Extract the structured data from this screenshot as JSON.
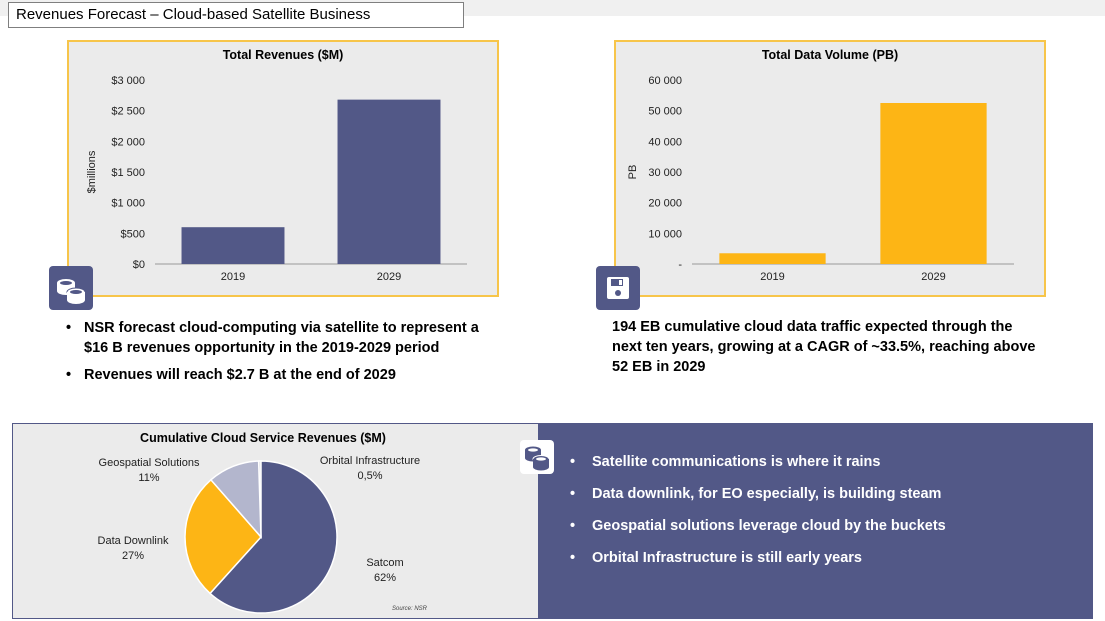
{
  "slide_title": "Revenues Forecast – Cloud-based Satellite Business",
  "colors": {
    "navy": "#525887",
    "orange": "#fdb515",
    "panel_border": "#f7c54a",
    "panel_bg": "#ebebeb"
  },
  "icons": {
    "revenue_icon": "coins-icon",
    "data_icon": "floppy-disk-icon",
    "pie_icon": "coins-icon"
  },
  "left_bullets": [
    "NSR forecast cloud-computing via satellite to represent a $16 B revenues opportunity in the 2019-2029 period",
    "Revenues will reach $2.7 B at the end of 2029"
  ],
  "right_text": "194 EB cumulative cloud data traffic expected through the next ten years, growing at a CAGR of ~33.5%, reaching above 52 EB in 2029",
  "bottom_bullets": [
    "Satellite communications is where it rains",
    "Data downlink, for EO especially, is building steam",
    "Geospatial solutions leverage cloud by the buckets",
    "Orbital Infrastructure is still early years"
  ],
  "pie_source": "Source: NSR",
  "chart_data": [
    {
      "type": "bar",
      "title": "Total Revenues ($M)",
      "ylabel": "$millions",
      "xlabel": "",
      "categories": [
        "2019",
        "2029"
      ],
      "values": [
        600,
        2680
      ],
      "ylim": [
        0,
        3000
      ],
      "ytick_labels": [
        "$0",
        "$500",
        "$1 000",
        "$1 500",
        "$2 000",
        "$2 500",
        "$3 000"
      ],
      "color": "#525887",
      "grid": false,
      "legend": "none"
    },
    {
      "type": "bar",
      "title": "Total Data Volume (PB)",
      "ylabel": "PB",
      "xlabel": "",
      "categories": [
        "2019",
        "2029"
      ],
      "values": [
        3500,
        52500
      ],
      "ylim": [
        0,
        60000
      ],
      "ytick_labels": [
        "-",
        "10 000",
        "20 000",
        "30 000",
        "40 000",
        "50 000",
        "60 000"
      ],
      "color": "#fdb515",
      "grid": false,
      "legend": "none"
    },
    {
      "type": "pie",
      "title": "Cumulative Cloud Service Revenues ($M)",
      "slices": [
        {
          "label": "Satcom",
          "value_label": "62%",
          "value": 62,
          "color": "#525887"
        },
        {
          "label": "Data Downlink",
          "value_label": "27%",
          "value": 27,
          "color": "#fdb515"
        },
        {
          "label": "Geospatial Solutions",
          "value_label": "11%",
          "value": 11,
          "color": "#b3b6cd"
        },
        {
          "label": "Orbital Infrastructure",
          "value_label": "0,5%",
          "value": 0.5,
          "color": "#d8d8e0"
        }
      ],
      "legend": "none"
    }
  ]
}
